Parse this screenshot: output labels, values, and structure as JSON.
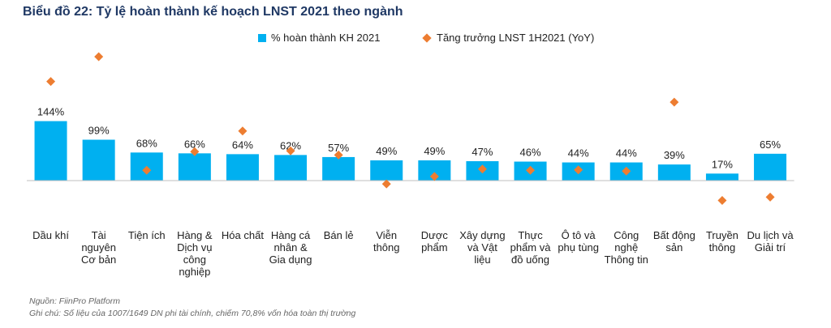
{
  "title": "Biểu đồ 22: Tỷ lệ hoàn thành kế hoạch LNST 2021 theo ngành",
  "legend": {
    "bar_label": "% hoàn thành KH 2021",
    "diamond_label": "Tăng trưởng LNST 1H2021 (YoY)"
  },
  "colors": {
    "bar": "#00b0f0",
    "diamond": "#ed7d31",
    "axis": "#bfbfbf",
    "title": "#1f3864"
  },
  "chart_data": {
    "type": "bar",
    "categories": [
      [
        "Dầu khí"
      ],
      [
        "Tài",
        "nguyên",
        "Cơ bản"
      ],
      [
        "Tiện ích"
      ],
      [
        "Hàng &",
        "Dịch vụ",
        "công",
        "nghiệp"
      ],
      [
        "Hóa chất"
      ],
      [
        "Hàng cá",
        "nhân &",
        "Gia dụng"
      ],
      [
        "Bán lẻ"
      ],
      [
        "Viễn",
        "thông"
      ],
      [
        "Dược",
        "phẩm"
      ],
      [
        "Xây dựng",
        "và Vật",
        "liệu"
      ],
      [
        "Thực",
        "phẩm và",
        "đồ uống"
      ],
      [
        "Ô tô và",
        "phụ tùng"
      ],
      [
        "Công",
        "nghệ",
        "Thông tin"
      ],
      [
        "Bất động",
        "sản"
      ],
      [
        "Truyền",
        "thông"
      ],
      [
        "Du lịch và",
        "Giải trí"
      ]
    ],
    "series": [
      {
        "name": "% hoàn thành KH 2021",
        "type": "bar",
        "values": [
          144,
          99,
          68,
          66,
          64,
          62,
          57,
          49,
          49,
          47,
          46,
          44,
          44,
          39,
          17,
          65
        ],
        "labels": [
          "144%",
          "99%",
          "68%",
          "66%",
          "64%",
          "62%",
          "57%",
          "49%",
          "49%",
          "47%",
          "46%",
          "44%",
          "44%",
          "39%",
          "17%",
          "65%"
        ]
      },
      {
        "name": "Tăng trưởng LNST 1H2021 (YoY)",
        "type": "scatter",
        "values": [
          240,
          300,
          25,
          70,
          120,
          72,
          62,
          -8,
          10,
          28,
          25,
          26,
          23,
          190,
          -48,
          -40
        ]
      }
    ],
    "ylim": [
      -70,
      330
    ]
  },
  "footer": {
    "source": "Nguồn: FiinPro Platform",
    "note": "Ghi chú: Số liệu của 1007/1649 DN phi tài chính, chiếm 70,8% vốn hóa toàn thị trường"
  }
}
